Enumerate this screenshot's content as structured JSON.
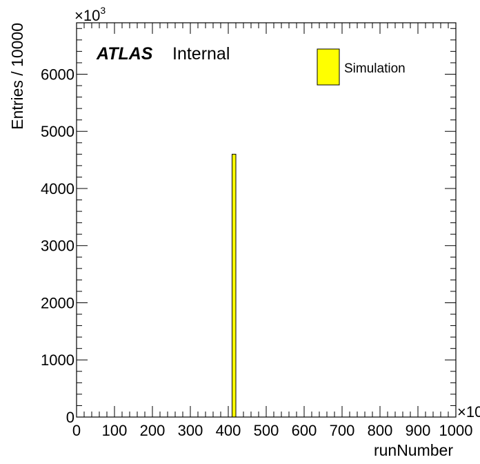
{
  "chart_data": {
    "type": "bar",
    "x": [
      410,
      420
    ],
    "values": [
      4600
    ],
    "bins": [
      {
        "x_low": 410,
        "x_high": 420,
        "value": 4600
      }
    ],
    "xlabel": "runNumber",
    "ylabel": "Entries / 10000",
    "xlim": [
      0,
      1000
    ],
    "ylim": [
      0,
      6900
    ],
    "x_multiplier": "×10",
    "y_multiplier": "×10",
    "y_multiplier_exponent": "3",
    "x_ticks": [
      "0",
      "100",
      "200",
      "300",
      "400",
      "500",
      "600",
      "700",
      "800",
      "900",
      "1000"
    ],
    "y_ticks": [
      "0",
      "1000",
      "2000",
      "3000",
      "4000",
      "5000",
      "6000"
    ],
    "grid": false,
    "legend_position": "top-right",
    "series": [
      {
        "name": "Simulation",
        "color": "#ffff00"
      }
    ],
    "annotations": {
      "experiment": "ATLAS",
      "status": "Internal"
    }
  }
}
